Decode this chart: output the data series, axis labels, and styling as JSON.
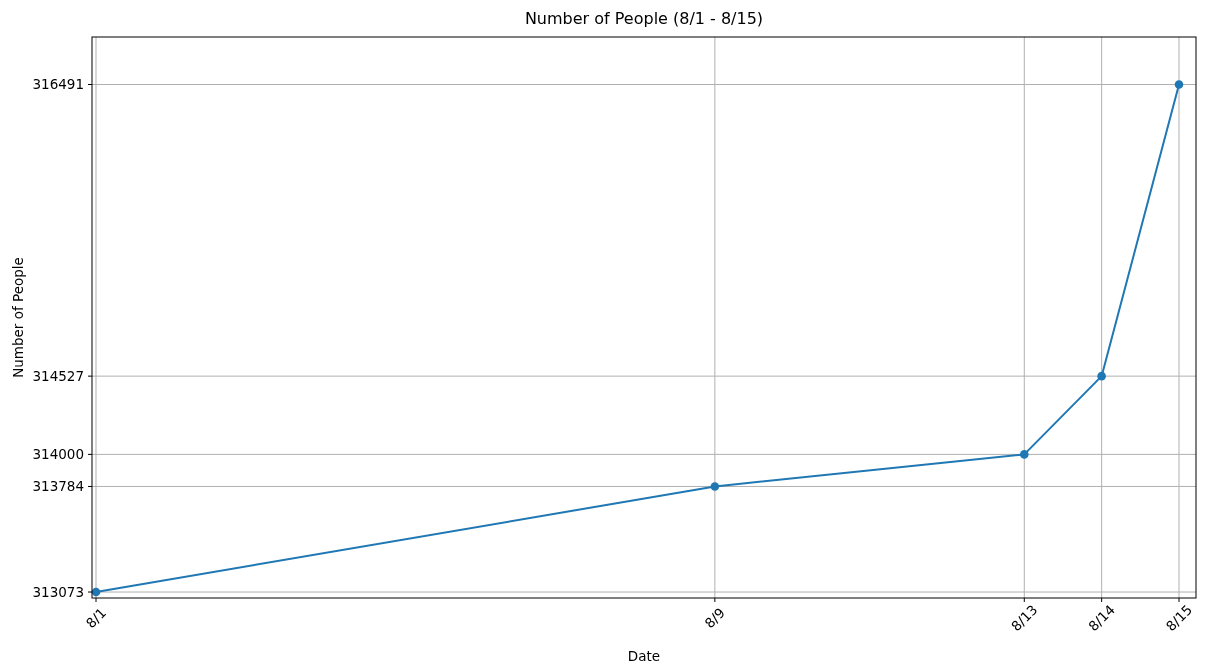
{
  "chart_data": {
    "type": "line",
    "title": "Number of People (8/1 - 8/15)",
    "xlabel": "Date",
    "ylabel": "Number of People",
    "x": [
      "--08-01",
      "--08-09",
      "--08-13",
      "--08-14",
      "--08-15"
    ],
    "series": [
      {
        "color": "#1f77b4",
        "values": [
          313073,
          313784,
          314000,
          314527,
          316491
        ]
      }
    ],
    "xlim": [
      "--08-01",
      "--08-15"
    ],
    "xticks": [
      {
        "value": "--08-01",
        "label": "8/1"
      },
      {
        "value": "--08-09",
        "label": "8/9"
      },
      {
        "value": "--08-13",
        "label": "8/13"
      },
      {
        "value": "--08-14",
        "label": "8/14"
      },
      {
        "value": "--08-15",
        "label": "8/15"
      }
    ],
    "ylim": [
      313053,
      316811
    ],
    "yticks": [
      313073,
      313784,
      314000,
      314527,
      316491
    ],
    "grid": true,
    "marker": "circle",
    "line_style": "solid"
  }
}
